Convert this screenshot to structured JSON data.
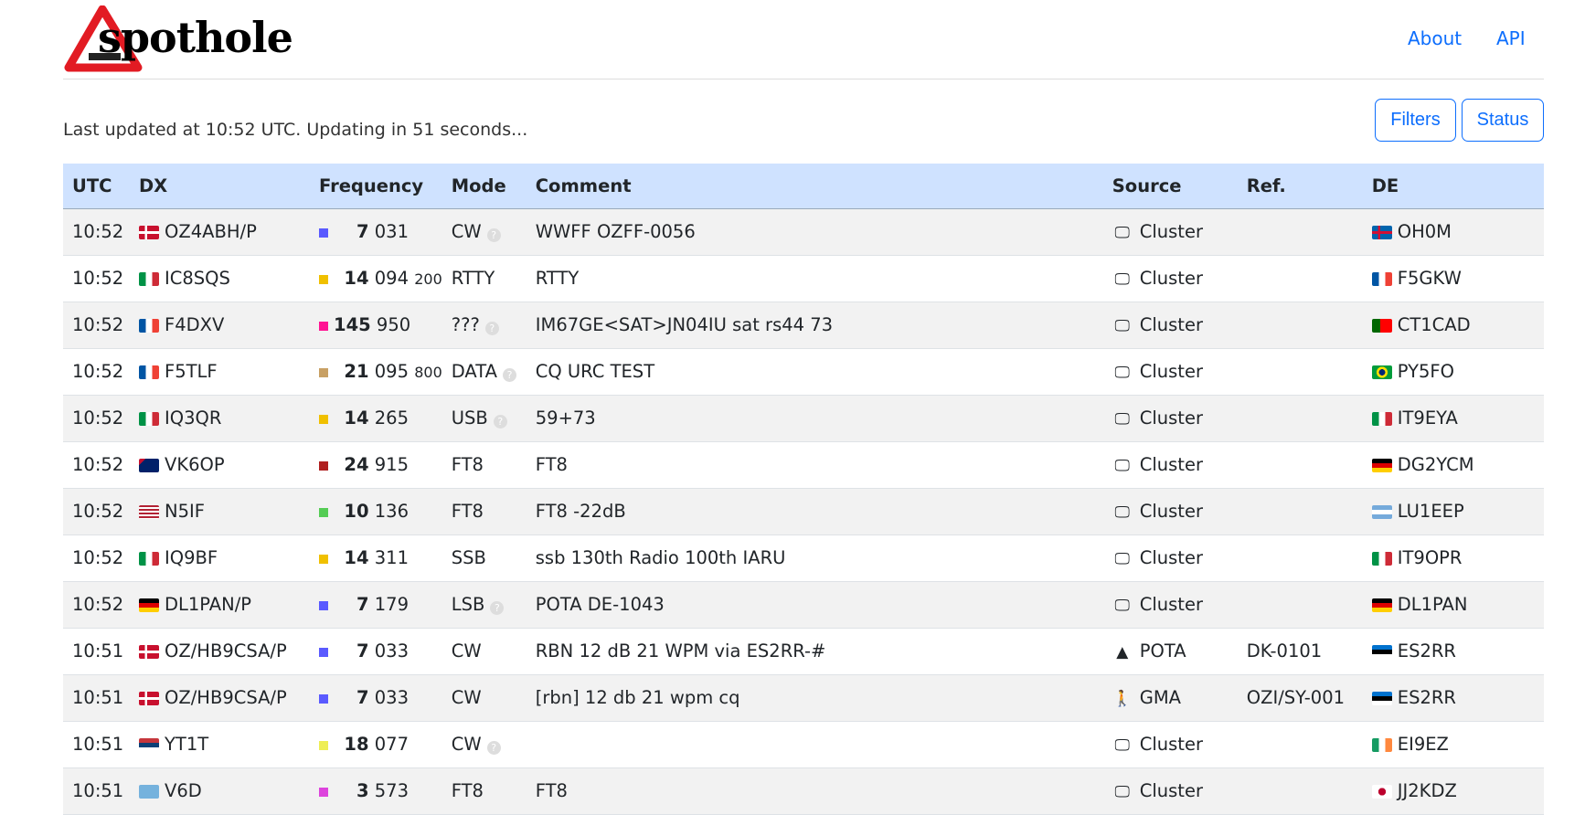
{
  "header": {
    "logo_text": "spothole",
    "nav": [
      {
        "label": "About"
      },
      {
        "label": "API"
      }
    ]
  },
  "status": {
    "text": "Last updated at 10:52 UTC. Updating in 51 seconds..."
  },
  "toolbar": {
    "filters_label": "Filters",
    "status_label": "Status"
  },
  "colors": {
    "accent": "#0d6efd",
    "header_bg": "#cfe2ff"
  },
  "table": {
    "columns": [
      "UTC",
      "DX",
      "Frequency",
      "Mode",
      "Comment",
      "Source",
      "Ref.",
      "DE"
    ],
    "rows": [
      {
        "utc": "10:52",
        "dx_flag": "dk",
        "dx": "OZ4ABH/P",
        "band_color": "#5a5aff",
        "mhz": "7",
        "khz": "031",
        "hz": "",
        "mode": "CW",
        "mode_unknown": true,
        "comment": "WWFF OZFF-0056",
        "source_icon": "monitor-icon",
        "source": "Cluster",
        "ref": "",
        "de_flag": "ax",
        "de": "OH0M"
      },
      {
        "utc": "10:52",
        "dx_flag": "it",
        "dx": "IC8SQS",
        "band_color": "#f0c000",
        "mhz": "14",
        "khz": "094",
        "hz": "200",
        "mode": "RTTY",
        "mode_unknown": false,
        "comment": "RTTY",
        "source_icon": "monitor-icon",
        "source": "Cluster",
        "ref": "",
        "de_flag": "fr",
        "de": "F5GKW"
      },
      {
        "utc": "10:52",
        "dx_flag": "fr",
        "dx": "F4DXV",
        "band_color": "#ff1493",
        "mhz": "145",
        "khz": "950",
        "hz": "",
        "mode": "???",
        "mode_unknown": true,
        "comment": "IM67GE<SAT>JN04IU sat rs44 73",
        "source_icon": "monitor-icon",
        "source": "Cluster",
        "ref": "",
        "de_flag": "pt",
        "de": "CT1CAD"
      },
      {
        "utc": "10:52",
        "dx_flag": "fr",
        "dx": "F5TLF",
        "band_color": "#c8a064",
        "mhz": "21",
        "khz": "095",
        "hz": "800",
        "mode": "DATA",
        "mode_unknown": true,
        "comment": "CQ URC TEST",
        "source_icon": "monitor-icon",
        "source": "Cluster",
        "ref": "",
        "de_flag": "br",
        "de": "PY5FO"
      },
      {
        "utc": "10:52",
        "dx_flag": "it",
        "dx": "IQ3QR",
        "band_color": "#f0c000",
        "mhz": "14",
        "khz": "265",
        "hz": "",
        "mode": "USB",
        "mode_unknown": true,
        "comment": "59+73",
        "source_icon": "monitor-icon",
        "source": "Cluster",
        "ref": "",
        "de_flag": "it",
        "de": "IT9EYA"
      },
      {
        "utc": "10:52",
        "dx_flag": "au",
        "dx": "VK6OP",
        "band_color": "#b02020",
        "mhz": "24",
        "khz": "915",
        "hz": "",
        "mode": "FT8",
        "mode_unknown": false,
        "comment": "FT8",
        "source_icon": "monitor-icon",
        "source": "Cluster",
        "ref": "",
        "de_flag": "de",
        "de": "DG2YCM"
      },
      {
        "utc": "10:52",
        "dx_flag": "us",
        "dx": "N5IF",
        "band_color": "#55cc55",
        "mhz": "10",
        "khz": "136",
        "hz": "",
        "mode": "FT8",
        "mode_unknown": false,
        "comment": "FT8 -22dB",
        "source_icon": "monitor-icon",
        "source": "Cluster",
        "ref": "",
        "de_flag": "ar",
        "de": "LU1EEP"
      },
      {
        "utc": "10:52",
        "dx_flag": "it",
        "dx": "IQ9BF",
        "band_color": "#f0c000",
        "mhz": "14",
        "khz": "311",
        "hz": "",
        "mode": "SSB",
        "mode_unknown": false,
        "comment": "ssb 130th Radio 100th IARU",
        "source_icon": "monitor-icon",
        "source": "Cluster",
        "ref": "",
        "de_flag": "it",
        "de": "IT9OPR"
      },
      {
        "utc": "10:52",
        "dx_flag": "de",
        "dx": "DL1PAN/P",
        "band_color": "#5a5aff",
        "mhz": "7",
        "khz": "179",
        "hz": "",
        "mode": "LSB",
        "mode_unknown": true,
        "comment": "POTA DE-1043",
        "source_icon": "monitor-icon",
        "source": "Cluster",
        "ref": "",
        "de_flag": "de",
        "de": "DL1PAN"
      },
      {
        "utc": "10:51",
        "dx_flag": "dk",
        "dx": "OZ/HB9CSA/P",
        "band_color": "#5a5aff",
        "mhz": "7",
        "khz": "033",
        "hz": "",
        "mode": "CW",
        "mode_unknown": false,
        "comment": "RBN 12 dB 21 WPM via ES2RR-#",
        "source_icon": "tree-icon",
        "source": "POTA",
        "ref": "DK-0101",
        "de_flag": "ee",
        "de": "ES2RR"
      },
      {
        "utc": "10:51",
        "dx_flag": "dk",
        "dx": "OZ/HB9CSA/P",
        "band_color": "#5a5aff",
        "mhz": "7",
        "khz": "033",
        "hz": "",
        "mode": "CW",
        "mode_unknown": false,
        "comment": "[rbn] 12 db 21 wpm cq",
        "source_icon": "hiker-icon",
        "source": "GMA",
        "ref": "OZI/SY-001",
        "de_flag": "ee",
        "de": "ES2RR"
      },
      {
        "utc": "10:51",
        "dx_flag": "rs",
        "dx": "YT1T",
        "band_color": "#eeee55",
        "mhz": "18",
        "khz": "077",
        "hz": "",
        "mode": "CW",
        "mode_unknown": true,
        "comment": "",
        "source_icon": "monitor-icon",
        "source": "Cluster",
        "ref": "",
        "de_flag": "ie",
        "de": "EI9EZ"
      },
      {
        "utc": "10:51",
        "dx_flag": "fm",
        "dx": "V6D",
        "band_color": "#dd44dd",
        "mhz": "3",
        "khz": "573",
        "hz": "",
        "mode": "FT8",
        "mode_unknown": false,
        "comment": "FT8",
        "source_icon": "monitor-icon",
        "source": "Cluster",
        "ref": "",
        "de_flag": "jp",
        "de": "JJ2KDZ"
      }
    ]
  }
}
